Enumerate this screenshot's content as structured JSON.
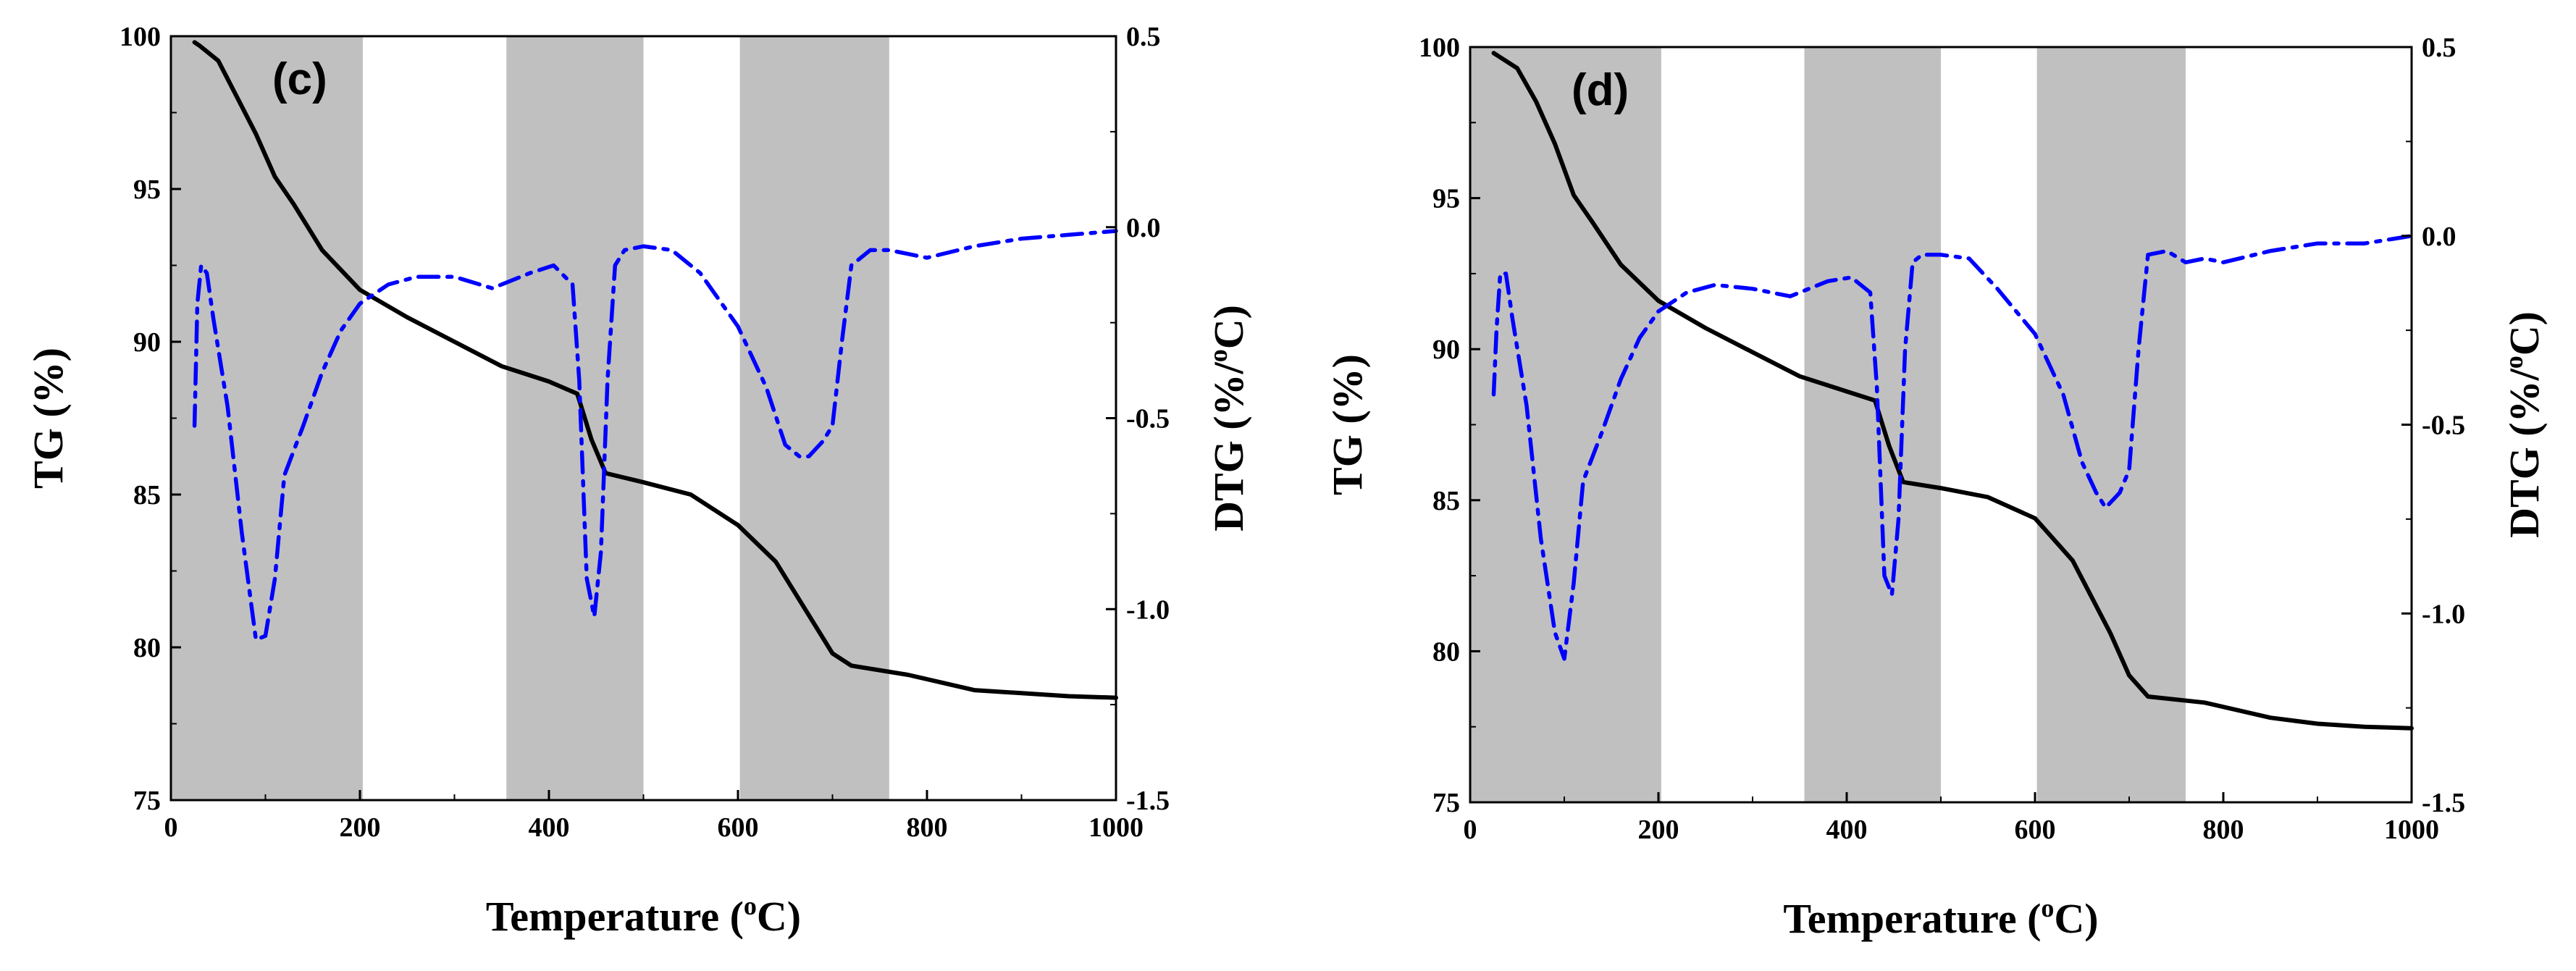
{
  "chart_data": [
    {
      "type": "line",
      "panel_label": "(c)",
      "xlabel": "Temperature (",
      "xlabel_sup": "o",
      "xlabel_end": "C)",
      "ylabel_left": "TG (%)",
      "ylabel_right_main": "DTG (%/",
      "ylabel_right_sup": "o",
      "ylabel_right_end": "C)",
      "xlim": [
        0,
        1000
      ],
      "ylim_left": [
        75,
        100
      ],
      "ylim_right": [
        -1.5,
        0.5
      ],
      "x_ticks": [
        0,
        200,
        400,
        600,
        800,
        1000
      ],
      "y_left_ticks": [
        75,
        80,
        85,
        90,
        95,
        100
      ],
      "y_right_ticks": [
        -1.5,
        -1.0,
        -0.5,
        0.0,
        0.5
      ],
      "y_right_tick_labels": [
        "-1.5",
        "-1.0",
        "-0.5",
        "0.0",
        "0.5"
      ],
      "shaded_regions": [
        [
          0,
          203
        ],
        [
          355,
          500
        ],
        [
          602,
          760
        ]
      ],
      "series": [
        {
          "name": "TG",
          "axis": "left",
          "color": "#000000",
          "style": "solid",
          "x": [
            25,
            30,
            50,
            70,
            90,
            110,
            130,
            160,
            200,
            250,
            300,
            350,
            400,
            430,
            445,
            460,
            500,
            550,
            600,
            640,
            680,
            700,
            720,
            780,
            850,
            900,
            950,
            1000
          ],
          "y": [
            99.8,
            99.7,
            99.2,
            98.0,
            96.8,
            95.4,
            94.5,
            93.0,
            91.7,
            90.8,
            90.0,
            89.2,
            88.7,
            88.3,
            86.8,
            85.7,
            85.4,
            85.0,
            84.0,
            82.8,
            80.8,
            79.8,
            79.4,
            79.1,
            78.6,
            78.5,
            78.4,
            78.35
          ]
        },
        {
          "name": "DTG",
          "axis": "right",
          "color": "#0000ff",
          "style": "dashdot",
          "x": [
            25,
            28,
            32,
            38,
            45,
            60,
            75,
            90,
            100,
            110,
            120,
            140,
            160,
            180,
            200,
            230,
            260,
            300,
            340,
            380,
            405,
            425,
            432,
            440,
            448,
            455,
            462,
            470,
            480,
            500,
            530,
            560,
            600,
            630,
            650,
            665,
            675,
            690,
            700,
            710,
            720,
            740,
            760,
            780,
            800,
            850,
            900,
            950,
            1000
          ],
          "y": [
            -0.52,
            -0.2,
            -0.1,
            -0.12,
            -0.24,
            -0.47,
            -0.8,
            -1.08,
            -1.07,
            -0.92,
            -0.65,
            -0.52,
            -0.38,
            -0.27,
            -0.2,
            -0.15,
            -0.13,
            -0.13,
            -0.16,
            -0.12,
            -0.1,
            -0.15,
            -0.4,
            -0.92,
            -1.02,
            -0.85,
            -0.4,
            -0.1,
            -0.06,
            -0.05,
            -0.06,
            -0.12,
            -0.26,
            -0.42,
            -0.57,
            -0.6,
            -0.6,
            -0.56,
            -0.52,
            -0.3,
            -0.1,
            -0.06,
            -0.06,
            -0.07,
            -0.08,
            -0.05,
            -0.03,
            -0.02,
            -0.01
          ]
        }
      ]
    },
    {
      "type": "line",
      "panel_label": "(d)",
      "xlabel": "Temperature (",
      "xlabel_sup": "o",
      "xlabel_end": "C)",
      "ylabel_left": "TG (%)",
      "ylabel_right_main": "DTG (%/",
      "ylabel_right_sup": "o",
      "ylabel_right_end": "C)",
      "xlim": [
        0,
        1000
      ],
      "ylim_left": [
        75,
        100
      ],
      "ylim_right": [
        -1.5,
        0.5
      ],
      "x_ticks": [
        0,
        200,
        400,
        600,
        800,
        1000
      ],
      "y_left_ticks": [
        75,
        80,
        85,
        90,
        95,
        100
      ],
      "y_right_ticks": [
        -1.5,
        -1.0,
        -0.5,
        0.0,
        0.5
      ],
      "y_right_tick_labels": [
        "-1.5",
        "-1.0",
        "-0.5",
        "0.0",
        "0.5"
      ],
      "shaded_regions": [
        [
          0,
          203
        ],
        [
          355,
          500
        ],
        [
          602,
          760
        ]
      ],
      "series": [
        {
          "name": "TG",
          "axis": "left",
          "color": "#000000",
          "style": "solid",
          "x": [
            25,
            30,
            50,
            70,
            90,
            110,
            130,
            160,
            200,
            250,
            300,
            350,
            400,
            430,
            445,
            460,
            500,
            550,
            600,
            640,
            680,
            700,
            720,
            780,
            850,
            900,
            950,
            1000
          ],
          "y": [
            99.8,
            99.7,
            99.3,
            98.2,
            96.8,
            95.1,
            94.2,
            92.8,
            91.6,
            90.7,
            89.9,
            89.1,
            88.6,
            88.3,
            86.8,
            85.6,
            85.4,
            85.1,
            84.4,
            83.0,
            80.6,
            79.2,
            78.5,
            78.3,
            77.8,
            77.6,
            77.5,
            77.45
          ]
        },
        {
          "name": "DTG",
          "axis": "right",
          "color": "#0000ff",
          "style": "dashdot",
          "x": [
            25,
            28,
            32,
            38,
            45,
            60,
            75,
            90,
            100,
            110,
            120,
            140,
            160,
            180,
            200,
            230,
            260,
            300,
            340,
            380,
            405,
            425,
            432,
            440,
            448,
            455,
            462,
            470,
            480,
            500,
            530,
            560,
            600,
            630,
            650,
            665,
            675,
            690,
            700,
            710,
            720,
            740,
            760,
            780,
            800,
            850,
            900,
            950,
            1000
          ],
          "y": [
            -0.42,
            -0.25,
            -0.1,
            -0.1,
            -0.22,
            -0.45,
            -0.8,
            -1.05,
            -1.12,
            -0.92,
            -0.65,
            -0.52,
            -0.38,
            -0.27,
            -0.2,
            -0.15,
            -0.13,
            -0.14,
            -0.16,
            -0.12,
            -0.11,
            -0.15,
            -0.4,
            -0.9,
            -0.95,
            -0.75,
            -0.3,
            -0.07,
            -0.05,
            -0.05,
            -0.06,
            -0.14,
            -0.26,
            -0.42,
            -0.6,
            -0.68,
            -0.72,
            -0.68,
            -0.62,
            -0.3,
            -0.05,
            -0.04,
            -0.07,
            -0.06,
            -0.07,
            -0.04,
            -0.02,
            -0.02,
            0.0
          ]
        }
      ]
    }
  ]
}
